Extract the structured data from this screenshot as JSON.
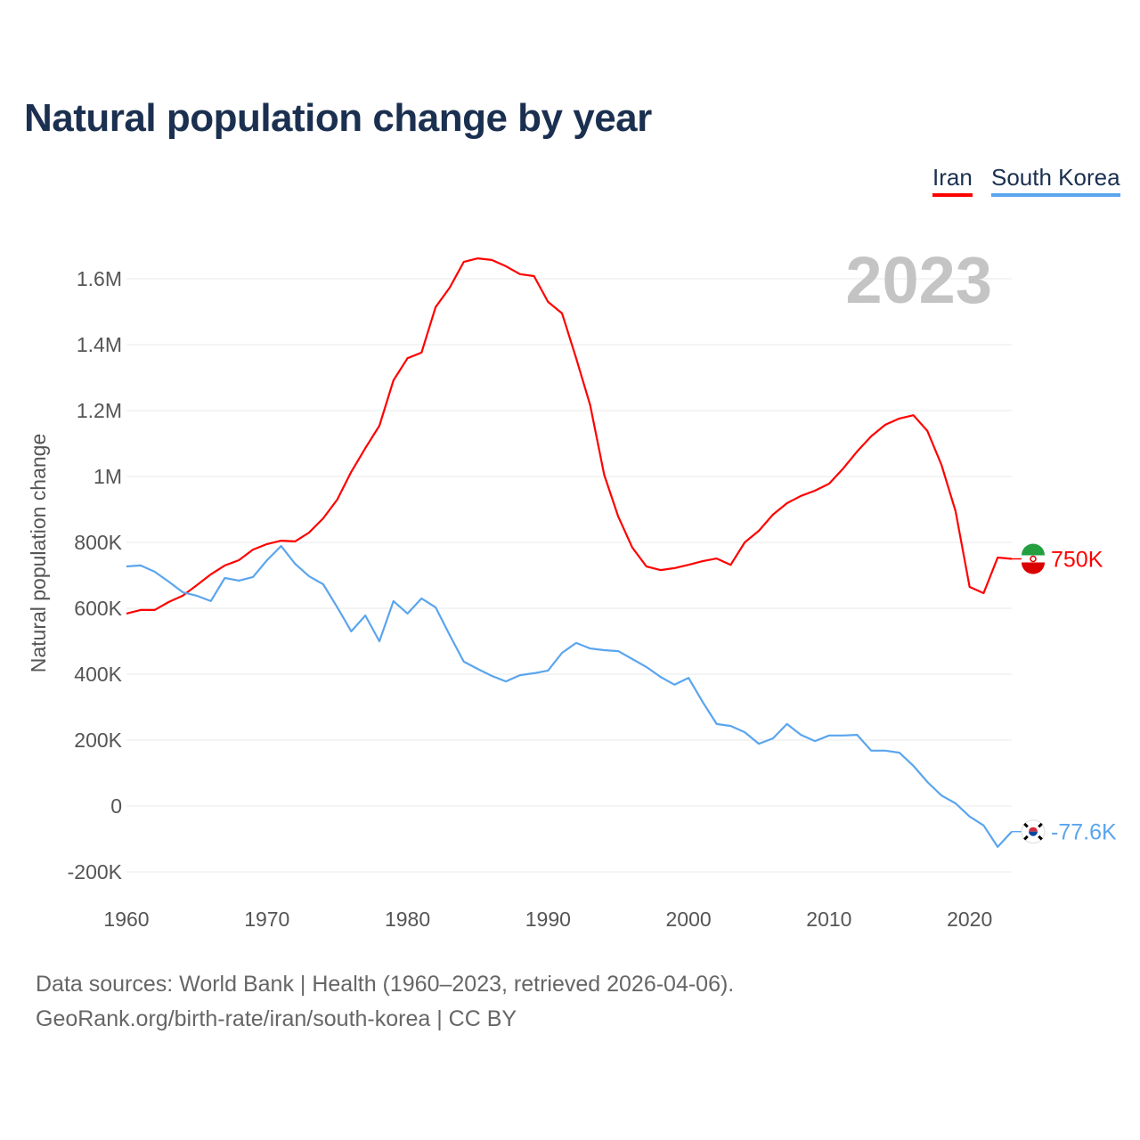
{
  "title": "Natural population change by year",
  "legend": [
    {
      "label": "Iran",
      "color": "#ff0000"
    },
    {
      "label": "South Korea",
      "color": "#5aa5ee"
    }
  ],
  "footer": {
    "line1": "Data sources: World Bank | Health (1960–2023, retrieved 2026-04-06).",
    "line2": "GeoRank.org/birth-rate/iran/south-korea | CC BY"
  },
  "chart_data": {
    "type": "line",
    "title": "Natural population change by year",
    "xlabel": "",
    "ylabel": "Natural population change",
    "year_label": "2023",
    "xlim": [
      1960,
      2023
    ],
    "ylim": [
      -200000,
      1600000
    ],
    "x_ticks": [
      1960,
      1970,
      1980,
      1990,
      2000,
      2010,
      2020
    ],
    "y_ticks": [
      {
        "v": -200000,
        "l": "-200K"
      },
      {
        "v": 0,
        "l": "0"
      },
      {
        "v": 200000,
        "l": "200K"
      },
      {
        "v": 400000,
        "l": "400K"
      },
      {
        "v": 600000,
        "l": "600K"
      },
      {
        "v": 800000,
        "l": "800K"
      },
      {
        "v": 1000000,
        "l": "1M"
      },
      {
        "v": 1200000,
        "l": "1.2M"
      },
      {
        "v": 1400000,
        "l": "1.4M"
      },
      {
        "v": 1600000,
        "l": "1.6M"
      }
    ],
    "grid": true,
    "legend_position": "top-right",
    "x": [
      1960,
      1961,
      1962,
      1963,
      1964,
      1965,
      1966,
      1967,
      1968,
      1969,
      1970,
      1971,
      1972,
      1973,
      1974,
      1975,
      1976,
      1977,
      1978,
      1979,
      1980,
      1981,
      1982,
      1983,
      1984,
      1985,
      1986,
      1987,
      1988,
      1989,
      1990,
      1991,
      1992,
      1993,
      1994,
      1995,
      1996,
      1997,
      1998,
      1999,
      2000,
      2001,
      2002,
      2003,
      2004,
      2005,
      2006,
      2007,
      2008,
      2009,
      2010,
      2011,
      2012,
      2013,
      2014,
      2015,
      2016,
      2017,
      2018,
      2019,
      2020,
      2021,
      2022,
      2023
    ],
    "series": [
      {
        "name": "Iran",
        "color": "#ff0000",
        "end_label": "750K",
        "flag": "iran-flag-icon",
        "values": [
          584000,
          595000,
          595000,
          619000,
          638000,
          670000,
          703000,
          730000,
          746000,
          778000,
          795000,
          805000,
          803000,
          830000,
          873000,
          930000,
          1014000,
          1086000,
          1154000,
          1292000,
          1359000,
          1376000,
          1514000,
          1573000,
          1651000,
          1662000,
          1657000,
          1638000,
          1614000,
          1608000,
          1530000,
          1495000,
          1359000,
          1216000,
          1005000,
          878000,
          784000,
          727000,
          716000,
          722000,
          732000,
          743000,
          751000,
          732000,
          800000,
          835000,
          884000,
          919000,
          941000,
          957000,
          978000,
          1024000,
          1076000,
          1122000,
          1157000,
          1176000,
          1186000,
          1138000,
          1035000,
          895000,
          665000,
          646000,
          754000,
          750000
        ]
      },
      {
        "name": "South Korea",
        "color": "#5aa5ee",
        "end_label": "-77.6K",
        "flag": "south-korea-flag-icon",
        "values": [
          727000,
          730000,
          711000,
          681000,
          649000,
          638000,
          622000,
          692000,
          684000,
          695000,
          746000,
          789000,
          735000,
          697000,
          673000,
          603000,
          530000,
          578000,
          500000,
          622000,
          584000,
          630000,
          603000,
          519000,
          438000,
          416000,
          395000,
          378000,
          397000,
          403000,
          411000,
          465000,
          495000,
          478000,
          473000,
          470000,
          446000,
          422000,
          392000,
          368000,
          389000,
          316000,
          249000,
          243000,
          224000,
          189000,
          205000,
          249000,
          216000,
          197000,
          214000,
          214000,
          216000,
          168000,
          168000,
          162000,
          122000,
          73000,
          32000,
          8000,
          -32000,
          -59000,
          -124000,
          -77600
        ]
      }
    ]
  }
}
